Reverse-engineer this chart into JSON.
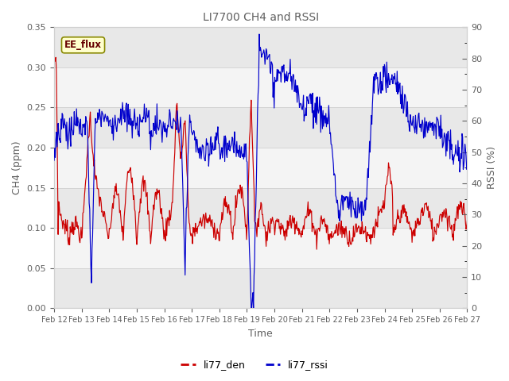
{
  "title": "LI7700 CH4 and RSSI",
  "xlabel": "Time",
  "ylabel_left": "CH4 (ppm)",
  "ylabel_right": "RSSI (%)",
  "ylim_left": [
    0.0,
    0.35
  ],
  "ylim_right": [
    0,
    90
  ],
  "yticks_left": [
    0.0,
    0.05,
    0.1,
    0.15,
    0.2,
    0.25,
    0.3,
    0.35
  ],
  "yticks_right": [
    0,
    10,
    20,
    30,
    40,
    50,
    60,
    70,
    80,
    90
  ],
  "x_labels": [
    "Feb 12",
    "Feb 13",
    "Feb 14",
    "Feb 15",
    "Feb 16",
    "Feb 17",
    "Feb 18",
    "Feb 19",
    "Feb 20",
    "Feb 21",
    "Feb 22",
    "Feb 23",
    "Feb 24",
    "Feb 25",
    "Feb 26",
    "Feb 27"
  ],
  "color_ch4": "#cc0000",
  "color_rssi": "#0000cc",
  "bg_color": "#ffffff",
  "plot_bg_color": "#ffffff",
  "band_color_dark": "#e8e8e8",
  "band_color_light": "#f4f4f4",
  "grid_color": "#d0d0d0",
  "legend_label_ch4": "li77_den",
  "legend_label_rssi": "li77_rssi",
  "annotation_text": "EE_flux",
  "annotation_bg": "#ffffcc",
  "annotation_border": "#888800",
  "title_color": "#606060",
  "label_color": "#606060"
}
